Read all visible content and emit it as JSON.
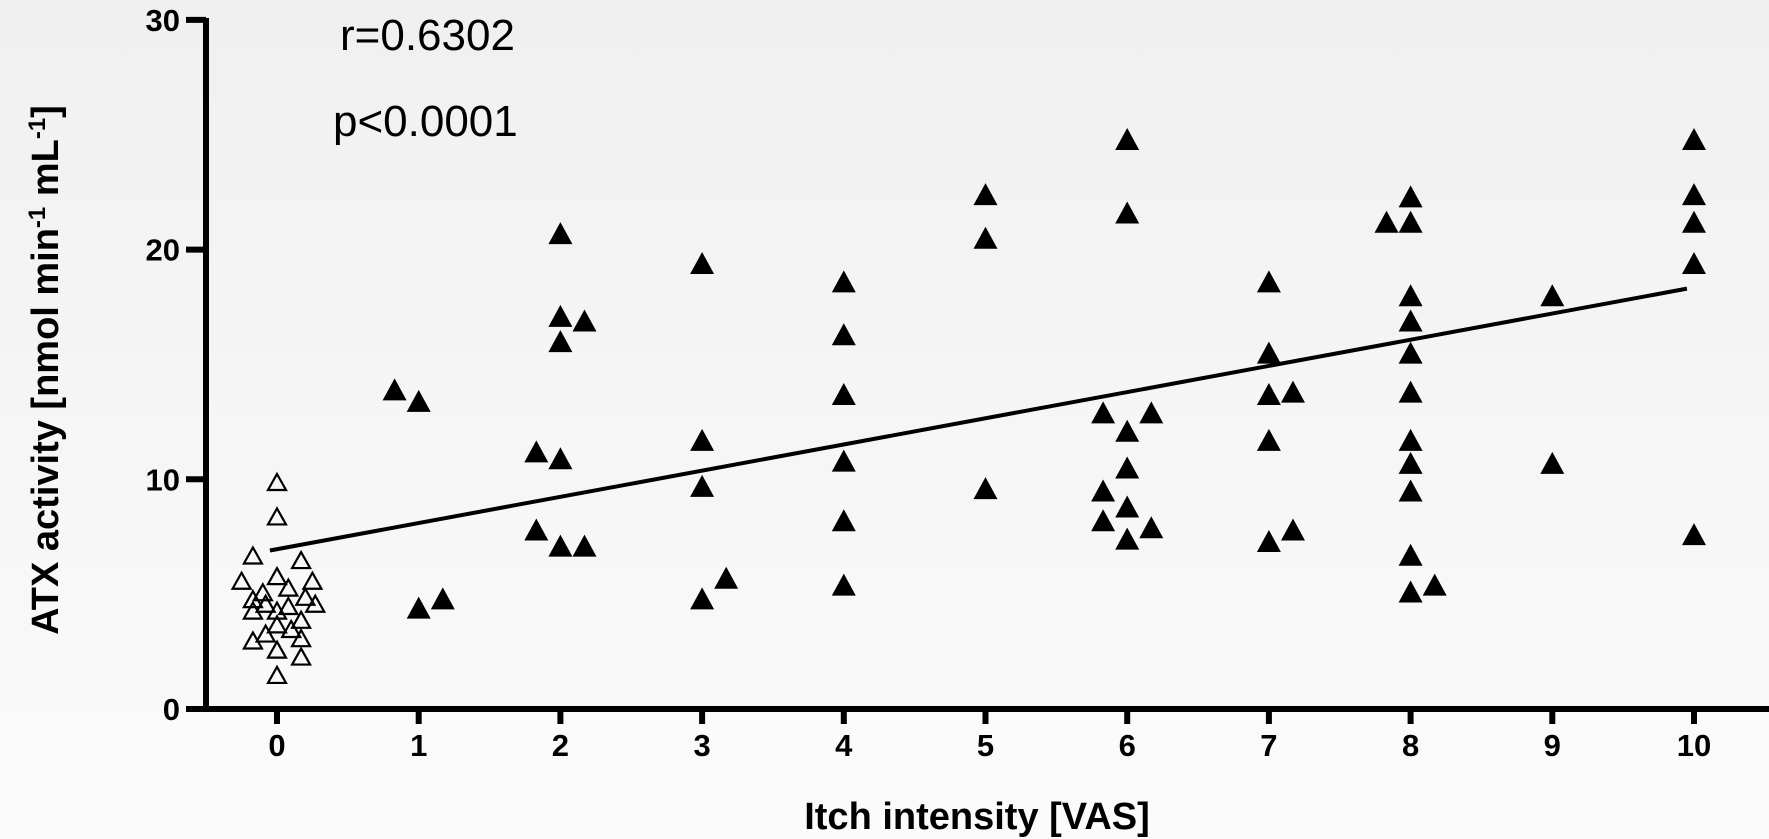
{
  "chart_data": {
    "type": "scatter",
    "xlabel": "Itch intensity [VAS]",
    "ylabel": "ATX activity [nmol min",
    "ylabel_sup1": "-1",
    "ylabel_mid": " mL",
    "ylabel_sup2": "-1",
    "ylabel_end": "]",
    "xlim": [
      -0.5,
      10.5
    ],
    "ylim": [
      0,
      30
    ],
    "x_ticks": [
      0,
      1,
      2,
      3,
      4,
      5,
      6,
      7,
      8,
      9,
      10
    ],
    "y_ticks": [
      0,
      10,
      20,
      30
    ],
    "grid": false,
    "annotations": [
      "r=0.6302",
      "p<0.0001"
    ],
    "series": [
      {
        "marker": "open-triangle",
        "points": [
          [
            0.0,
            9.8
          ],
          [
            0.0,
            8.3
          ],
          [
            -0.17,
            6.6
          ],
          [
            0.17,
            6.4
          ],
          [
            -0.25,
            5.5
          ],
          [
            0.0,
            5.7
          ],
          [
            0.25,
            5.5
          ],
          [
            -0.1,
            5.0
          ],
          [
            0.08,
            5.2
          ],
          [
            0.2,
            4.8
          ],
          [
            -0.17,
            4.7
          ],
          [
            -0.08,
            4.5
          ],
          [
            0.08,
            4.4
          ],
          [
            0.27,
            4.5
          ],
          [
            -0.17,
            4.2
          ],
          [
            0.0,
            4.2
          ],
          [
            0.17,
            3.8
          ],
          [
            0.0,
            3.6
          ],
          [
            0.1,
            3.4
          ],
          [
            -0.08,
            3.2
          ],
          [
            0.17,
            3.0
          ],
          [
            -0.17,
            2.9
          ],
          [
            0.0,
            2.5
          ],
          [
            0.17,
            2.2
          ],
          [
            0.0,
            1.4
          ]
        ]
      },
      {
        "marker": "filled-triangle",
        "points": [
          [
            0.83,
            13.8
          ],
          [
            1.0,
            13.3
          ],
          [
            1.0,
            4.3
          ],
          [
            1.17,
            4.7
          ],
          [
            2.0,
            20.6
          ],
          [
            2.0,
            17.0
          ],
          [
            2.17,
            16.8
          ],
          [
            2.0,
            15.9
          ],
          [
            1.83,
            11.1
          ],
          [
            2.0,
            10.8
          ],
          [
            1.83,
            7.7
          ],
          [
            2.0,
            7.0
          ],
          [
            2.17,
            7.0
          ],
          [
            3.0,
            19.3
          ],
          [
            3.0,
            11.6
          ],
          [
            3.0,
            9.6
          ],
          [
            3.17,
            5.6
          ],
          [
            3.0,
            4.7
          ],
          [
            4.0,
            18.5
          ],
          [
            4.0,
            16.2
          ],
          [
            4.0,
            13.6
          ],
          [
            4.0,
            10.7
          ],
          [
            4.0,
            8.1
          ],
          [
            4.0,
            5.3
          ],
          [
            5.0,
            22.3
          ],
          [
            5.0,
            20.4
          ],
          [
            5.0,
            9.5
          ],
          [
            6.0,
            24.7
          ],
          [
            6.0,
            21.5
          ],
          [
            5.83,
            12.8
          ],
          [
            6.17,
            12.8
          ],
          [
            6.0,
            12.0
          ],
          [
            6.0,
            10.4
          ],
          [
            5.83,
            9.4
          ],
          [
            6.0,
            8.7
          ],
          [
            5.83,
            8.1
          ],
          [
            6.17,
            7.8
          ],
          [
            6.0,
            7.3
          ],
          [
            7.0,
            18.5
          ],
          [
            7.0,
            15.4
          ],
          [
            7.0,
            13.6
          ],
          [
            7.17,
            13.7
          ],
          [
            7.0,
            11.6
          ],
          [
            7.17,
            7.7
          ],
          [
            7.0,
            7.2
          ],
          [
            7.83,
            21.1
          ],
          [
            8.0,
            22.2
          ],
          [
            8.0,
            21.1
          ],
          [
            8.0,
            17.9
          ],
          [
            8.0,
            16.8
          ],
          [
            8.0,
            15.4
          ],
          [
            8.0,
            13.7
          ],
          [
            8.0,
            11.6
          ],
          [
            8.0,
            10.6
          ],
          [
            8.0,
            9.4
          ],
          [
            8.0,
            6.6
          ],
          [
            8.17,
            5.3
          ],
          [
            8.0,
            5.0
          ],
          [
            9.0,
            17.9
          ],
          [
            9.0,
            10.6
          ],
          [
            10.0,
            24.7
          ],
          [
            10.0,
            22.3
          ],
          [
            10.0,
            21.1
          ],
          [
            10.0,
            19.3
          ],
          [
            10.0,
            7.5
          ]
        ]
      }
    ],
    "regression_line": {
      "x": [
        -0.05,
        9.95
      ],
      "y": [
        6.9,
        18.3
      ]
    }
  }
}
